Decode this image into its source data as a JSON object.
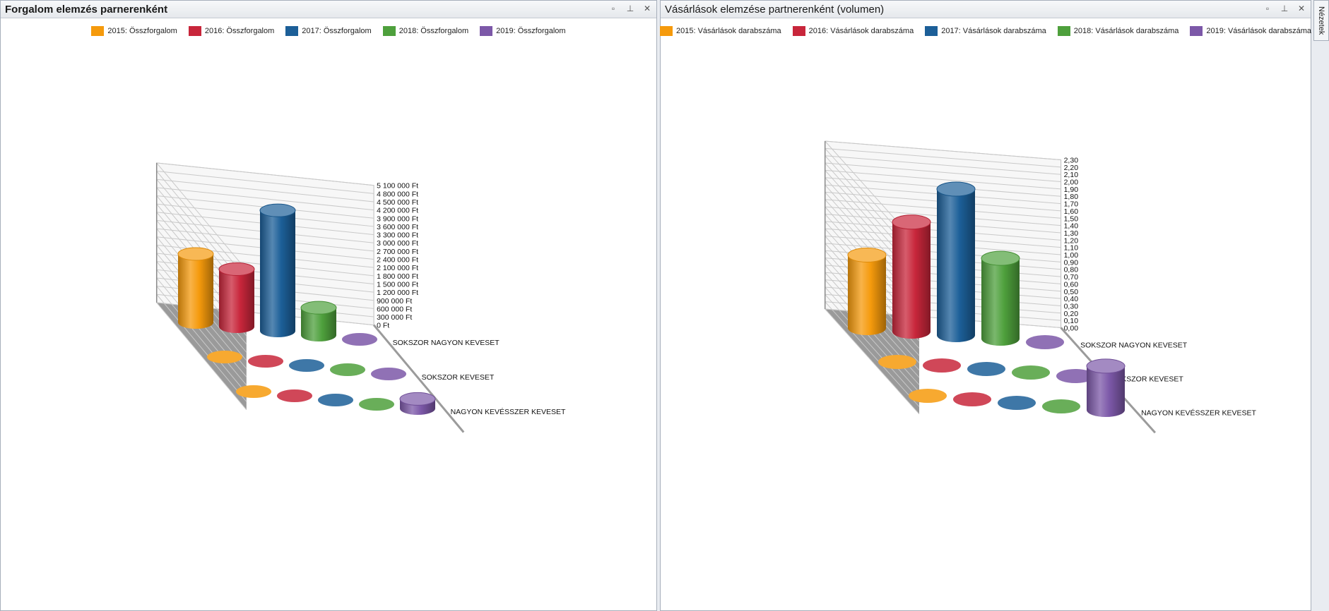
{
  "left_panel": {
    "title": "Forgalom elemzés parnerenként",
    "legend": [
      {
        "label": "2015: Összforgalom",
        "color": "#f59a0c"
      },
      {
        "label": "2016: Összforgalom",
        "color": "#c8263b"
      },
      {
        "label": "2017: Összforgalom",
        "color": "#1c5f98"
      },
      {
        "label": "2018: Összforgalom",
        "color": "#4ea03c"
      },
      {
        "label": "2019: Összforgalom",
        "color": "#7c58a8"
      }
    ]
  },
  "right_panel": {
    "title": "Vásárlások elemzése partnerenként (volumen)",
    "legend": [
      {
        "label": "2015: Vásárlások darabszáma",
        "color": "#f59a0c"
      },
      {
        "label": "2016: Vásárlások darabszáma",
        "color": "#c8263b"
      },
      {
        "label": "2017: Vásárlások darabszáma",
        "color": "#1c5f98"
      },
      {
        "label": "2018: Vásárlások darabszáma",
        "color": "#4ea03c"
      },
      {
        "label": "2019: Vásárlások darabszáma",
        "color": "#7c58a8"
      }
    ]
  },
  "side_tab": {
    "label": "Nézetek"
  },
  "window_icons": [
    "restore-icon",
    "pin-icon",
    "close-icon"
  ],
  "chart_data": [
    {
      "type": "bar",
      "subtype": "3d-cylinder",
      "title": "Forgalom elemzés parnerenként",
      "categories": [
        "SOKSZOR NAGYON KEVESET",
        "SOKSZOR KEVESET",
        "NAGYON KEVÉSSZER KEVESET"
      ],
      "series": [
        {
          "name": "2015: Összforgalom",
          "values": [
            2500000,
            0,
            0
          ]
        },
        {
          "name": "2016: Összforgalom",
          "values": [
            2100000,
            0,
            0
          ]
        },
        {
          "name": "2017: Összforgalom",
          "values": [
            4400000,
            0,
            0
          ]
        },
        {
          "name": "2018: Összforgalom",
          "values": [
            1000000,
            0,
            0
          ]
        },
        {
          "name": "2019: Összforgalom",
          "values": [
            0,
            0,
            350000
          ]
        }
      ],
      "yticks": [
        "0 Ft",
        "300 000 Ft",
        "600 000 Ft",
        "900 000 Ft",
        "1 200 000 Ft",
        "1 500 000 Ft",
        "1 800 000 Ft",
        "2 100 000 Ft",
        "2 400 000 Ft",
        "2 700 000 Ft",
        "3 000 000 Ft",
        "3 300 000 Ft",
        "3 600 000 Ft",
        "3 900 000 Ft",
        "4 200 000 Ft",
        "4 500 000 Ft",
        "4 800 000 Ft",
        "5 100 000 Ft"
      ],
      "ylim": [
        0,
        5100000
      ],
      "legend_position": "top"
    },
    {
      "type": "bar",
      "subtype": "3d-cylinder",
      "title": "Vásárlások elemzése partnerenként (volumen)",
      "categories": [
        "SOKSZOR NAGYON KEVESET",
        "SOKSZOR KEVESET",
        "NAGYON KEVÉSSZER KEVESET"
      ],
      "series": [
        {
          "name": "2015: Vásárlások darabszáma",
          "values": [
            1.0,
            0,
            0
          ]
        },
        {
          "name": "2016: Vásárlások darabszáma",
          "values": [
            1.5,
            0,
            0
          ]
        },
        {
          "name": "2017: Vásárlások darabszáma",
          "values": [
            2.0,
            0,
            0
          ]
        },
        {
          "name": "2018: Vásárlások darabszáma",
          "values": [
            1.1,
            0,
            0
          ]
        },
        {
          "name": "2019: Vásárlások darabszáma",
          "values": [
            0,
            0,
            0.6
          ]
        }
      ],
      "yticks": [
        "0,00",
        "0,10",
        "0,20",
        "0,30",
        "0,40",
        "0,50",
        "0,60",
        "0,70",
        "0,80",
        "0,90",
        "1,00",
        "1,10",
        "1,20",
        "1,30",
        "1,40",
        "1,50",
        "1,60",
        "1,70",
        "1,80",
        "1,90",
        "2,00",
        "2,10",
        "2,20",
        "2,30"
      ],
      "ylim": [
        0,
        2.3
      ],
      "legend_position": "top"
    }
  ]
}
